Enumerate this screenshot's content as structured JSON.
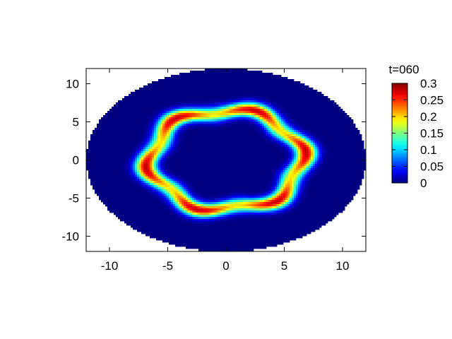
{
  "chart_data": {
    "type": "heatmap",
    "title": "",
    "xlabel": "",
    "ylabel": "",
    "xlim": [
      -12,
      12
    ],
    "ylim": [
      12,
      -12
    ],
    "x_ticks": [
      -10,
      -5,
      0,
      5,
      10
    ],
    "y_ticks": [
      -10,
      -5,
      0,
      5,
      10
    ],
    "x_tick_labels": [
      "-10",
      "-5",
      "0",
      "5",
      "10"
    ],
    "y_tick_labels": [
      "-10",
      "-5",
      "0",
      "5",
      "10"
    ],
    "domain": {
      "shape": "ellipse",
      "center": [
        0,
        0
      ],
      "semi_axis_x": 12,
      "semi_axis_y": 12
    },
    "background_value": 0,
    "ring": {
      "mean_radius": 6.5,
      "thickness": 0.9,
      "peak_value": 0.28,
      "angular_modes": 6
    },
    "colorbar": {
      "label": "t=060",
      "min": 0,
      "max": 0.3,
      "ticks": [
        0,
        0.05,
        0.1,
        0.15,
        0.2,
        0.25,
        0.3
      ],
      "tick_labels": [
        "0",
        "0.05",
        "0.1",
        "0.15",
        "0.2",
        "0.25",
        "0.3"
      ],
      "colormap": "jet"
    },
    "grid": false
  }
}
